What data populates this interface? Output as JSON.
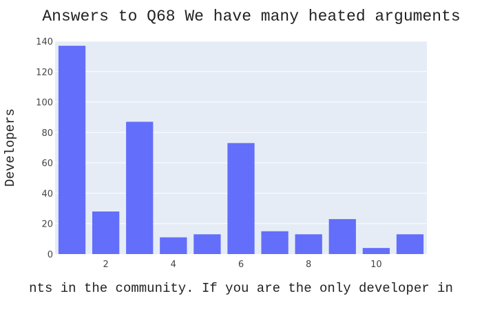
{
  "chart_data": {
    "type": "bar",
    "title": "Answers to Q68 We have many heated arguments",
    "xlabel": "nts in the community. If you are the only developer in",
    "ylabel": "Developers",
    "x": [
      1,
      2,
      3,
      4,
      5,
      6,
      7,
      8,
      9,
      10,
      11
    ],
    "values": [
      137,
      28,
      87,
      11,
      13,
      73,
      15,
      13,
      23,
      4,
      13
    ],
    "xlim": [
      0.5,
      11.5
    ],
    "ylim": [
      0,
      140
    ],
    "xticks": [
      "2",
      "4",
      "6",
      "8",
      "10"
    ],
    "yticks": [
      "0",
      "20",
      "40",
      "60",
      "80",
      "100",
      "120",
      "140"
    ],
    "grid": true,
    "colors": {
      "bar": "#636efa",
      "plot_background": "#e5ecf6",
      "grid": "#ffffff"
    }
  }
}
